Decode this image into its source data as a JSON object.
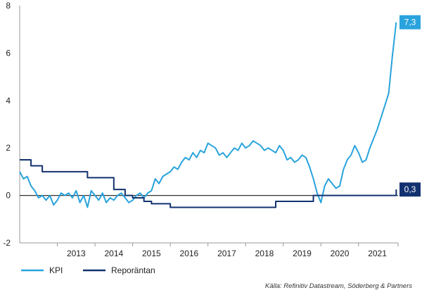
{
  "chart_data": {
    "type": "line",
    "title": "",
    "xlabel": "",
    "ylabel": "",
    "ylim": [
      -2,
      8
    ],
    "yticks": [
      "-2",
      "0",
      "2",
      "4",
      "6",
      "8"
    ],
    "xlim": [
      2012.0,
      2022.05
    ],
    "xticks": [
      "2013",
      "2014",
      "2015",
      "2016",
      "2017",
      "2018",
      "2019",
      "2020",
      "2021"
    ],
    "grid": false,
    "legend": "bottom-left",
    "source": "Källa: Refinitiv Datastream, Söderberg & Partners",
    "colors": {
      "kpi": "#29a3dd",
      "repo": "#12326f",
      "zero_line": "#333333"
    },
    "series": [
      {
        "name": "KPI",
        "end_label": "7,3",
        "x": [
          2012.0,
          2012.1,
          2012.2,
          2012.3,
          2012.4,
          2012.5,
          2012.6,
          2012.7,
          2012.8,
          2012.9,
          2013.0,
          2013.1,
          2013.2,
          2013.3,
          2013.4,
          2013.5,
          2013.6,
          2013.7,
          2013.8,
          2013.9,
          2014.0,
          2014.1,
          2014.2,
          2014.3,
          2014.4,
          2014.5,
          2014.6,
          2014.7,
          2014.8,
          2014.9,
          2015.0,
          2015.1,
          2015.2,
          2015.3,
          2015.4,
          2015.5,
          2015.6,
          2015.7,
          2015.8,
          2015.9,
          2016.0,
          2016.1,
          2016.2,
          2016.3,
          2016.4,
          2016.5,
          2016.6,
          2016.7,
          2016.8,
          2016.9,
          2017.0,
          2017.1,
          2017.2,
          2017.3,
          2017.4,
          2017.5,
          2017.6,
          2017.7,
          2017.8,
          2017.9,
          2018.0,
          2018.1,
          2018.2,
          2018.3,
          2018.4,
          2018.5,
          2018.6,
          2018.7,
          2018.8,
          2018.9,
          2019.0,
          2019.1,
          2019.2,
          2019.3,
          2019.4,
          2019.5,
          2019.6,
          2019.7,
          2019.8,
          2019.9,
          2020.0,
          2020.1,
          2020.2,
          2020.3,
          2020.4,
          2020.5,
          2020.6,
          2020.7,
          2020.8,
          2020.9,
          2021.0,
          2021.1,
          2021.2,
          2021.3,
          2021.4,
          2021.5,
          2021.6,
          2021.7,
          2021.8,
          2021.9,
          2022.0
        ],
        "values": [
          1.0,
          0.7,
          0.8,
          0.4,
          0.2,
          -0.1,
          0.0,
          -0.2,
          0.0,
          -0.4,
          -0.2,
          0.1,
          0.0,
          0.1,
          -0.1,
          0.2,
          -0.3,
          0.0,
          -0.5,
          0.2,
          0.0,
          -0.2,
          0.1,
          -0.3,
          -0.1,
          -0.2,
          0.0,
          0.1,
          -0.1,
          -0.3,
          -0.2,
          0.0,
          0.1,
          -0.1,
          0.1,
          0.2,
          0.7,
          0.5,
          0.8,
          0.9,
          1.0,
          1.2,
          1.1,
          1.4,
          1.6,
          1.5,
          1.8,
          1.6,
          1.9,
          1.8,
          2.2,
          2.1,
          2.0,
          1.7,
          1.8,
          1.6,
          1.8,
          2.0,
          1.9,
          2.2,
          2.0,
          2.1,
          2.3,
          2.2,
          2.1,
          1.9,
          2.0,
          1.9,
          1.8,
          2.1,
          1.9,
          1.5,
          1.6,
          1.4,
          1.5,
          1.7,
          1.6,
          1.2,
          0.7,
          0.1,
          -0.3,
          0.4,
          0.7,
          0.5,
          0.3,
          0.4,
          1.1,
          1.5,
          1.7,
          2.1,
          1.8,
          1.4,
          1.5,
          2.0,
          2.4,
          2.8,
          3.3,
          3.8,
          4.3,
          5.9,
          7.3
        ]
      },
      {
        "name": "Reporäntan",
        "end_label": "0,3",
        "step": true,
        "x": [
          2012.0,
          2012.3,
          2012.6,
          2013.0,
          2013.3,
          2013.5,
          2013.8,
          2014.0,
          2014.3,
          2014.5,
          2014.8,
          2015.0,
          2015.3,
          2015.5,
          2015.8,
          2016.0,
          2016.3,
          2016.5,
          2016.8,
          2017.0,
          2017.3,
          2017.5,
          2017.8,
          2018.0,
          2018.3,
          2018.5,
          2018.8,
          2019.0,
          2019.3,
          2019.5,
          2019.8,
          2020.0,
          2020.3,
          2020.5,
          2020.8,
          2021.0,
          2021.3,
          2021.5,
          2021.8,
          2021.9,
          2022.0
        ],
        "values": [
          1.5,
          1.25,
          1.0,
          1.0,
          1.0,
          1.0,
          0.75,
          0.75,
          0.75,
          0.25,
          0.0,
          -0.1,
          -0.25,
          -0.35,
          -0.35,
          -0.5,
          -0.5,
          -0.5,
          -0.5,
          -0.5,
          -0.5,
          -0.5,
          -0.5,
          -0.5,
          -0.5,
          -0.5,
          -0.25,
          -0.25,
          -0.25,
          -0.25,
          0.0,
          0.0,
          0.0,
          0.0,
          0.0,
          0.0,
          0.0,
          0.0,
          0.0,
          0.0,
          0.25
        ]
      }
    ]
  }
}
